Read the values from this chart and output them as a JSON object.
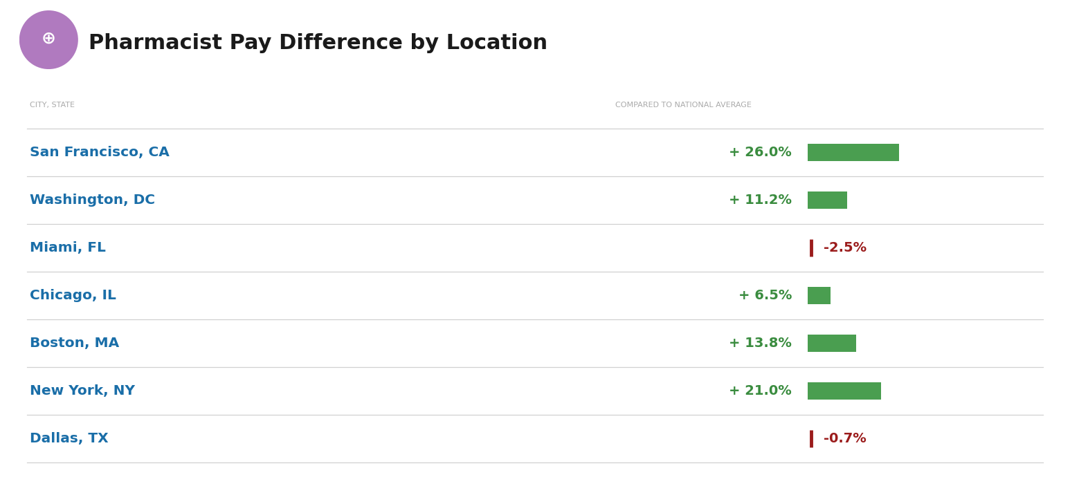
{
  "title": "Pharmacist Pay Difference by Location",
  "col_header_left": "CITY, STATE",
  "col_header_right": "COMPARED TO NATIONAL AVERAGE",
  "cities": [
    "San Francisco, CA",
    "Washington, DC",
    "Miami, FL",
    "Chicago, IL",
    "Boston, MA",
    "New York, NY",
    "Dallas, TX"
  ],
  "values": [
    26.0,
    11.2,
    -2.5,
    6.5,
    13.8,
    21.0,
    -0.7
  ],
  "pos_labels": [
    "+ 26.0%",
    "+ 11.2%",
    "+ 6.5%",
    "+ 13.8%",
    "+ 21.0%"
  ],
  "neg_labels": [
    "-2.5%",
    "-0.7%"
  ],
  "labels": [
    "+ 26.0%",
    "+ 11.2%",
    "-2.5%",
    "+ 6.5%",
    "+ 13.8%",
    "+ 21.0%",
    "-0.7%"
  ],
  "city_color": "#1a6ea8",
  "positive_color": "#3a8c3f",
  "negative_color": "#9b1c1c",
  "bar_color": "#4a9e50",
  "bg_color": "#ffffff",
  "separator_color": "#d0d0d0",
  "header_color": "#aaaaaa",
  "title_color": "#1a1a1a",
  "icon_bg_color": "#b07abf",
  "figwidth": 15.46,
  "figheight": 6.9
}
